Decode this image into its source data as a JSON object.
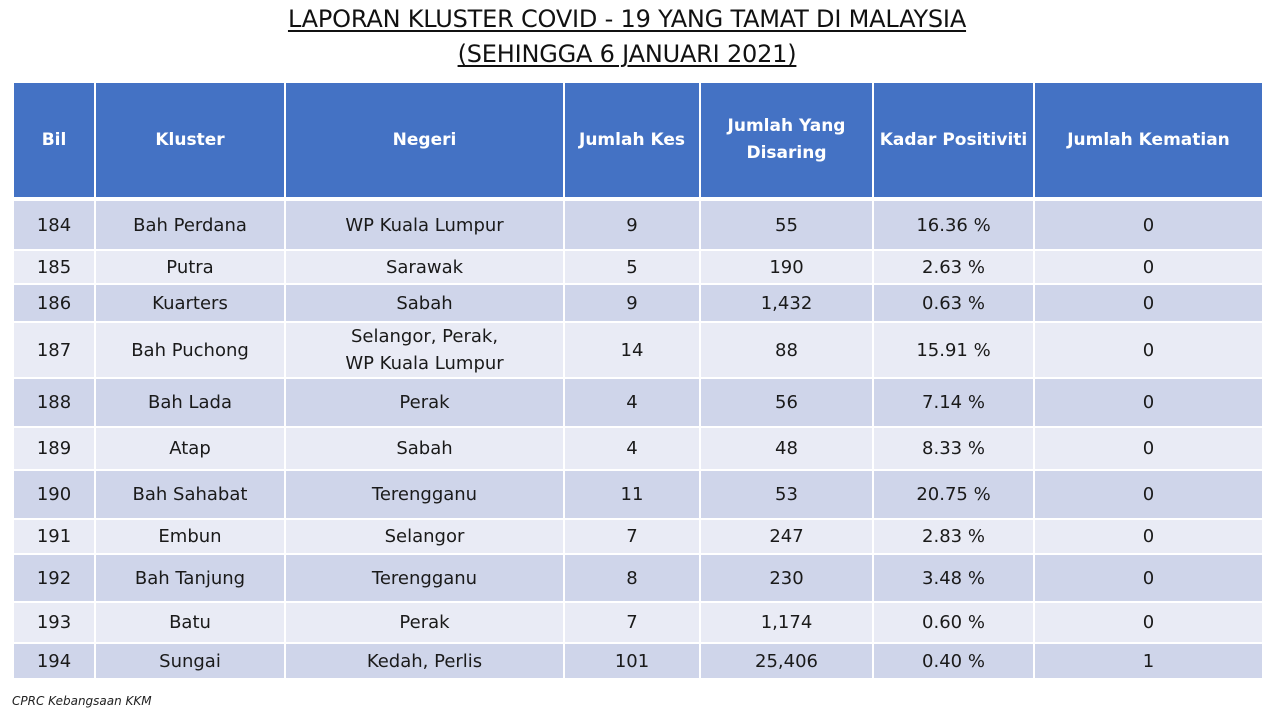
{
  "title": {
    "line1": "LAPORAN KLUSTER COVID - 19 YANG TAMAT DI MALAYSIA",
    "line2": "(SEHINGGA 6 JANUARI 2021)"
  },
  "table": {
    "headers": [
      "Bil",
      "Kluster",
      "Negeri",
      "Jumlah Kes",
      "Jumlah Yang Disaring",
      "Kadar Positiviti",
      "Jumlah Kematian"
    ],
    "rows": [
      [
        "184",
        "Bah Perdana",
        "WP Kuala Lumpur",
        "9",
        "55",
        "16.36 %",
        "0"
      ],
      [
        "185",
        "Putra",
        "Sarawak",
        "5",
        "190",
        "2.63 %",
        "0"
      ],
      [
        "186",
        "Kuarters",
        "Sabah",
        "9",
        "1,432",
        "0.63 %",
        "0"
      ],
      [
        "187",
        "Bah Puchong",
        "Selangor, Perak, WP Kuala Lumpur",
        "14",
        "88",
        "15.91 %",
        "0"
      ],
      [
        "188",
        "Bah Lada",
        "Perak",
        "4",
        "56",
        "7.14 %",
        "0"
      ],
      [
        "189",
        "Atap",
        "Sabah",
        "4",
        "48",
        "8.33 %",
        "0"
      ],
      [
        "190",
        "Bah Sahabat",
        "Terengganu",
        "11",
        "53",
        "20.75 %",
        "0"
      ],
      [
        "191",
        "Embun",
        "Selangor",
        "7",
        "247",
        "2.83 %",
        "0"
      ],
      [
        "192",
        "Bah Tanjung",
        "Terengganu",
        "8",
        "230",
        "3.48 %",
        "0"
      ],
      [
        "193",
        "Batu",
        "Perak",
        "7",
        "1,174",
        "0.60 %",
        "0"
      ],
      [
        "194",
        "Sungai",
        "Kedah, Perlis",
        "101",
        "25,406",
        "0.40 %",
        "1"
      ]
    ]
  },
  "footer": "CPRC Kebangsaan KKM",
  "colors": {
    "header_bg": "#4472c4",
    "row_dark": "#cfd5ea",
    "row_light": "#e9ebf5"
  }
}
